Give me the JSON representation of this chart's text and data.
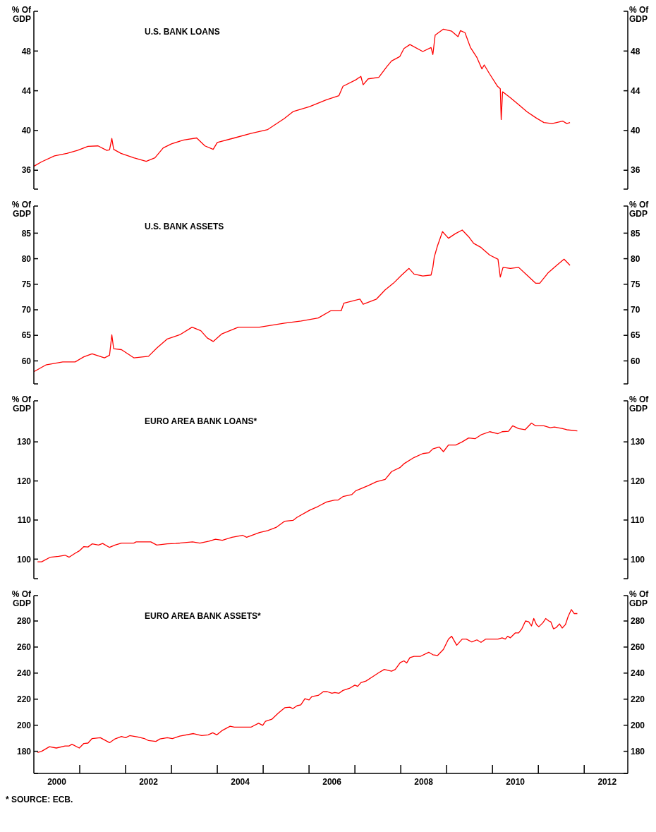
{
  "chart_data": [
    {
      "type": "line",
      "title": "U.S. BANK LOANS",
      "ylabel": "% Of GDP",
      "y2label": "% Of GDP",
      "tick_labels": "y",
      "xlim": [
        2000,
        2012.95
      ],
      "ylim": [
        34.1,
        52
      ],
      "yticks": [
        {
          "value": 34.1,
          "label": null
        },
        36,
        40,
        44,
        48,
        {
          "value": 52,
          "label": null
        }
      ],
      "y2lim": [
        34.1,
        52
      ],
      "y2ticks": [
        {
          "value": 34.1,
          "label": null
        },
        36,
        40,
        44,
        48,
        {
          "value": 52,
          "label": null
        }
      ],
      "x": [
        2000.0,
        2000.17,
        2000.45,
        2000.72,
        2000.95,
        2001.18,
        2001.4,
        2001.59,
        2001.65,
        2001.7,
        2001.74,
        2001.9,
        2002.18,
        2002.45,
        2002.64,
        2002.82,
        2003.0,
        2003.27,
        2003.55,
        2003.73,
        2003.91,
        2004.0,
        2004.37,
        2004.73,
        2005.1,
        2005.46,
        2005.65,
        2006.01,
        2006.38,
        2006.65,
        2006.74,
        2007.02,
        2007.13,
        2007.18,
        2007.29,
        2007.52,
        2007.7,
        2007.8,
        2007.98,
        2008.07,
        2008.2,
        2008.48,
        2008.66,
        2008.7,
        2008.75,
        2008.93,
        2009.11,
        2009.25,
        2009.3,
        2009.4,
        2009.52,
        2009.66,
        2009.77,
        2009.82,
        2009.93,
        2010.11,
        2010.17,
        2010.19,
        2010.22,
        2010.39,
        2010.57,
        2010.75,
        2010.94,
        2011.12,
        2011.3,
        2011.53,
        2011.62,
        2011.69
      ],
      "series": [
        {
          "color": "#ff0000",
          "values": [
            36.4,
            36.85,
            37.45,
            37.7,
            38.0,
            38.4,
            38.45,
            38.0,
            38.05,
            39.2,
            38.1,
            37.7,
            37.25,
            36.9,
            37.25,
            38.25,
            38.65,
            39.05,
            39.25,
            38.45,
            38.1,
            38.8,
            39.25,
            39.7,
            40.1,
            41.2,
            41.9,
            42.4,
            43.1,
            43.5,
            44.45,
            45.1,
            45.45,
            44.6,
            45.2,
            45.35,
            46.45,
            47.0,
            47.45,
            48.25,
            48.65,
            47.95,
            48.35,
            47.65,
            49.6,
            50.2,
            50.0,
            49.45,
            50.05,
            49.85,
            48.35,
            47.35,
            46.2,
            46.6,
            45.75,
            44.45,
            44.2,
            41.1,
            43.9,
            43.3,
            42.6,
            41.9,
            41.3,
            40.8,
            40.7,
            40.95,
            40.7,
            40.8
          ]
        }
      ]
    },
    {
      "type": "line",
      "title": "U.S. BANK ASSETS",
      "ylabel": "% Of GDP",
      "y2label": "% Of GDP",
      "tick_labels": "y",
      "xlim": [
        2000,
        2012.95
      ],
      "ylim": [
        55.5,
        90.3
      ],
      "yticks": [
        {
          "value": 55.5,
          "label": null
        },
        60,
        65,
        70,
        75,
        80,
        85,
        {
          "value": 90.3,
          "label": null
        }
      ],
      "y2lim": [
        55.5,
        90.3
      ],
      "y2ticks": [
        {
          "value": 55.5,
          "label": null
        },
        60,
        65,
        70,
        75,
        80,
        85,
        {
          "value": 90.3,
          "label": null
        }
      ],
      "x": [
        2000.0,
        2000.26,
        2000.63,
        2000.9,
        2001.09,
        2001.27,
        2001.54,
        2001.65,
        2001.7,
        2001.74,
        2001.91,
        2002.18,
        2002.5,
        2002.68,
        2002.91,
        2003.18,
        2003.45,
        2003.64,
        2003.78,
        2003.91,
        2004.1,
        2004.46,
        2004.92,
        2005.47,
        2005.83,
        2006.2,
        2006.47,
        2006.7,
        2006.76,
        2007.11,
        2007.18,
        2007.47,
        2007.66,
        2007.84,
        2008.02,
        2008.18,
        2008.29,
        2008.48,
        2008.66,
        2008.7,
        2008.73,
        2008.8,
        2008.91,
        2009.04,
        2009.19,
        2009.34,
        2009.48,
        2009.59,
        2009.75,
        2009.94,
        2010.12,
        2010.17,
        2010.23,
        2010.39,
        2010.57,
        2010.75,
        2010.94,
        2011.03,
        2011.21,
        2011.4,
        2011.56,
        2011.69
      ],
      "series": [
        {
          "color": "#ff0000",
          "values": [
            57.9,
            59.2,
            59.8,
            59.8,
            60.8,
            61.4,
            60.6,
            61.1,
            65.1,
            62.4,
            62.2,
            60.6,
            60.9,
            62.5,
            64.3,
            65.1,
            66.6,
            65.9,
            64.5,
            63.8,
            65.3,
            66.6,
            66.6,
            67.4,
            67.8,
            68.4,
            69.8,
            69.8,
            71.3,
            72.1,
            71.1,
            72.1,
            73.9,
            75.2,
            76.8,
            78.1,
            77.0,
            76.6,
            76.8,
            78.3,
            80.3,
            82.5,
            85.3,
            84.0,
            84.9,
            85.6,
            84.3,
            83.0,
            82.2,
            80.7,
            79.9,
            76.4,
            78.3,
            78.1,
            78.3,
            76.8,
            75.2,
            75.2,
            77.2,
            78.7,
            79.9,
            78.7
          ]
        }
      ]
    },
    {
      "type": "line",
      "title": "EURO AREA BANK LOANS*",
      "ylabel": "% Of GDP",
      "y2label": "% Of GDP",
      "tick_labels": "y",
      "xlim": [
        2000,
        2012.95
      ],
      "ylim": [
        95,
        140.5
      ],
      "yticks": [
        {
          "value": 95,
          "label": null
        },
        100,
        110,
        120,
        130,
        {
          "value": 140.5,
          "label": null
        }
      ],
      "y2lim": [
        95,
        140.5
      ],
      "y2ticks": [
        {
          "value": 95,
          "label": null
        },
        100,
        110,
        120,
        130,
        {
          "value": 140.5,
          "label": null
        }
      ],
      "x": [
        2000.08,
        2000.17,
        2000.36,
        2000.54,
        2000.68,
        2000.77,
        2000.9,
        2000.99,
        2001.09,
        2001.18,
        2001.27,
        2001.41,
        2001.5,
        2001.65,
        2001.77,
        2001.91,
        2002.18,
        2002.23,
        2002.55,
        2002.68,
        2002.91,
        2003.09,
        2003.46,
        2003.62,
        2003.82,
        2003.96,
        2004.11,
        2004.32,
        2004.55,
        2004.64,
        2004.92,
        2005.1,
        2005.28,
        2005.47,
        2005.65,
        2005.74,
        2006.01,
        2006.2,
        2006.38,
        2006.56,
        2006.63,
        2006.74,
        2006.93,
        2007.02,
        2007.29,
        2007.47,
        2007.66,
        2007.8,
        2007.98,
        2008.07,
        2008.29,
        2008.48,
        2008.61,
        2008.7,
        2008.84,
        2008.93,
        2009.04,
        2009.2,
        2009.34,
        2009.48,
        2009.62,
        2009.75,
        2009.94,
        2010.12,
        2010.21,
        2010.35,
        2010.44,
        2010.57,
        2010.71,
        2010.85,
        2010.94,
        2011.12,
        2011.26,
        2011.35,
        2011.53,
        2011.62,
        2011.85
      ],
      "series": [
        {
          "color": "#ff0000",
          "values": [
            99.3,
            99.3,
            100.5,
            100.7,
            101.0,
            100.5,
            101.5,
            102.1,
            103.2,
            103.1,
            103.9,
            103.6,
            104.0,
            103.0,
            103.6,
            104.1,
            104.1,
            104.4,
            104.4,
            103.6,
            103.9,
            104.0,
            104.4,
            104.1,
            104.6,
            105.1,
            104.8,
            105.6,
            106.1,
            105.6,
            106.8,
            107.3,
            108.1,
            109.7,
            109.9,
            110.7,
            112.5,
            113.5,
            114.6,
            115.1,
            115.1,
            116.0,
            116.5,
            117.5,
            118.8,
            119.8,
            120.4,
            122.4,
            123.4,
            124.4,
            126.0,
            127.0,
            127.2,
            128.2,
            128.7,
            127.5,
            129.2,
            129.2,
            130.0,
            131.0,
            130.8,
            131.8,
            132.6,
            132.1,
            132.6,
            132.7,
            134.1,
            133.4,
            133.1,
            134.8,
            134.1,
            134.1,
            133.6,
            133.8,
            133.4,
            133.1,
            132.8
          ]
        }
      ]
    },
    {
      "type": "line",
      "title": "EURO AREA BANK ASSETS*",
      "ylabel": "% Of GDP",
      "y2label": "% Of GDP",
      "xlim": [
        2000,
        2012.95
      ],
      "ylim": [
        163,
        299.5
      ],
      "yticks": [
        {
          "value": 163,
          "label": null
        },
        180,
        200,
        220,
        240,
        260,
        280,
        {
          "value": 299.5,
          "label": null
        }
      ],
      "y2lim": [
        163,
        299.5
      ],
      "y2ticks": [
        {
          "value": 163,
          "label": null
        },
        180,
        200,
        220,
        240,
        260,
        280,
        {
          "value": 299.5,
          "label": null
        }
      ],
      "xticks": [
        {
          "value": 2001,
          "label": null
        },
        {
          "value": 2002,
          "label": null
        },
        {
          "value": 2003,
          "label": null
        },
        {
          "value": 2004,
          "label": null
        },
        {
          "value": 2005,
          "label": null
        },
        {
          "value": 2006,
          "label": null
        },
        {
          "value": 2007,
          "label": null
        },
        {
          "value": 2008,
          "label": null
        },
        {
          "value": 2009,
          "label": null
        },
        {
          "value": 2010,
          "label": null
        },
        {
          "value": 2011,
          "label": null
        },
        {
          "value": 2012,
          "label": null
        },
        {
          "value": 2000.5,
          "label": "2000"
        },
        {
          "value": 2002.5,
          "label": "2002"
        },
        {
          "value": 2004.5,
          "label": "2004"
        },
        {
          "value": 2006.5,
          "label": "2006"
        },
        {
          "value": 2008.5,
          "label": "2008"
        },
        {
          "value": 2010.5,
          "label": "2010"
        },
        {
          "value": 2012.5,
          "label": "2012"
        }
      ],
      "annotations": [
        "* SOURCE: ECB."
      ],
      "x": [
        2000.08,
        2000.17,
        2000.34,
        2000.49,
        2000.68,
        2000.77,
        2000.83,
        2000.99,
        2001.09,
        2001.18,
        2001.27,
        2001.45,
        2001.65,
        2001.77,
        2001.91,
        2002.0,
        2002.09,
        2002.27,
        2002.41,
        2002.5,
        2002.66,
        2002.75,
        2002.91,
        2003.02,
        2003.18,
        2003.48,
        2003.66,
        2003.8,
        2003.9,
        2003.99,
        2004.1,
        2004.28,
        2004.37,
        2004.74,
        2004.9,
        2004.99,
        2005.05,
        2005.19,
        2005.33,
        2005.47,
        2005.58,
        2005.65,
        2005.74,
        2005.82,
        2005.91,
        2006.0,
        2006.06,
        2006.2,
        2006.31,
        2006.4,
        2006.5,
        2006.56,
        2006.65,
        2006.74,
        2006.88,
        2007.0,
        2007.06,
        2007.13,
        2007.24,
        2007.38,
        2007.52,
        2007.64,
        2007.8,
        2007.88,
        2007.99,
        2008.07,
        2008.13,
        2008.2,
        2008.29,
        2008.43,
        2008.61,
        2008.7,
        2008.8,
        2008.93,
        2009.04,
        2009.11,
        2009.22,
        2009.34,
        2009.43,
        2009.55,
        2009.66,
        2009.75,
        2009.85,
        2010.12,
        2010.21,
        2010.28,
        2010.33,
        2010.39,
        2010.5,
        2010.57,
        2010.64,
        2010.72,
        2010.79,
        2010.85,
        2010.9,
        2010.96,
        2011.01,
        2011.1,
        2011.16,
        2011.23,
        2011.27,
        2011.33,
        2011.39,
        2011.46,
        2011.52,
        2011.59,
        2011.65,
        2011.72,
        2011.78,
        2011.85
      ],
      "series": [
        {
          "color": "#ff0000",
          "values": [
            179.1,
            180,
            183.5,
            182.5,
            184.1,
            184.1,
            185.4,
            182.5,
            186.0,
            186.3,
            189.8,
            190.4,
            186.6,
            189.5,
            191.4,
            190.4,
            192.0,
            191.0,
            189.8,
            188.2,
            187.6,
            189.5,
            190.4,
            189.8,
            191.7,
            193.6,
            192.0,
            192.6,
            194.2,
            192.6,
            195.8,
            199.2,
            198.6,
            198.6,
            201.5,
            199.9,
            203.0,
            204.6,
            209.3,
            213.4,
            213.8,
            212.8,
            215.0,
            215.6,
            220.4,
            219.4,
            222.0,
            222.9,
            225.7,
            225.7,
            224.5,
            225.1,
            224.5,
            226.7,
            228.3,
            230.8,
            229.8,
            232.7,
            233.9,
            237.1,
            240.3,
            242.8,
            241.5,
            242.8,
            248.1,
            249.4,
            247.8,
            251.9,
            252.9,
            252.9,
            256.0,
            254.1,
            253.5,
            258.2,
            266.1,
            268.3,
            261.4,
            266.1,
            266.1,
            263.9,
            265.5,
            263.6,
            266.1,
            266.1,
            267.1,
            266.1,
            268.3,
            267.1,
            270.9,
            270.9,
            274.0,
            280.0,
            279.4,
            276.2,
            281.9,
            277.2,
            275.6,
            278.7,
            281.9,
            280.0,
            279.4,
            274.0,
            275.0,
            277.8,
            274.6,
            277.2,
            283.5,
            288.8,
            285.7,
            285.7
          ]
        }
      ]
    }
  ]
}
